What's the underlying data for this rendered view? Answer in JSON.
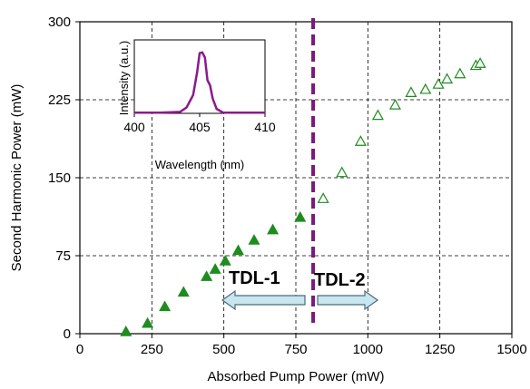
{
  "colors": {
    "marker": "#1e8c1e",
    "divider": "#7a1a7a",
    "arrow_fill": "#c8e6ee",
    "arrow_stroke": "#4a6a80",
    "inset_line": "#8b1a8b",
    "grid": "#000000"
  },
  "chart_data": [
    {
      "type": "scatter",
      "title": "",
      "xlabel": "Absorbed Pump Power (mW)",
      "ylabel": "Second Harmonic Power (mW)",
      "xlim": [
        0,
        1500
      ],
      "ylim": [
        0,
        300
      ],
      "xticks": [
        "0",
        "250",
        "500",
        "750",
        "1000",
        "1250",
        "1500"
      ],
      "yticks": [
        "0",
        "75",
        "150",
        "225",
        "300"
      ],
      "grid": "dashed at x=250,500,750,1000,1250 and y=75,150,225",
      "divider_x": 810,
      "regions": [
        {
          "label": "TDL-1",
          "arrow_direction": "left"
        },
        {
          "label": "TDL-2",
          "arrow_direction": "right"
        }
      ],
      "series": [
        {
          "marker": "filled-triangle",
          "points": [
            [
              160,
              2
            ],
            [
              235,
              10
            ],
            [
              295,
              26
            ],
            [
              360,
              40
            ],
            [
              440,
              55
            ],
            [
              470,
              62
            ],
            [
              505,
              70
            ],
            [
              550,
              80
            ],
            [
              605,
              90
            ],
            [
              670,
              100
            ],
            [
              765,
              112
            ]
          ]
        },
        {
          "marker": "open-triangle",
          "points": [
            [
              845,
              130
            ],
            [
              910,
              155
            ],
            [
              975,
              185
            ],
            [
              1035,
              210
            ],
            [
              1095,
              220
            ],
            [
              1150,
              232
            ],
            [
              1200,
              235
            ],
            [
              1245,
              240
            ],
            [
              1275,
              245
            ],
            [
              1320,
              250
            ],
            [
              1375,
              258
            ],
            [
              1390,
              260
            ]
          ]
        }
      ]
    },
    {
      "type": "line",
      "inset": true,
      "title": "",
      "xlabel": "Wavelength (nm)",
      "ylabel": "Intensity (a.u.)",
      "xlim": [
        400,
        410
      ],
      "ylim": [
        0,
        1
      ],
      "xticks": [
        "400",
        "405",
        "410"
      ],
      "series": [
        {
          "x": [
            400,
            402,
            403.5,
            404.0,
            404.5,
            404.8,
            405.0,
            405.2,
            405.4,
            405.6,
            405.8,
            406.0,
            406.3,
            406.8,
            410
          ],
          "y": [
            0.01,
            0.01,
            0.02,
            0.08,
            0.25,
            0.55,
            0.82,
            0.83,
            0.76,
            0.45,
            0.38,
            0.2,
            0.06,
            0.01,
            0.01
          ]
        }
      ]
    }
  ]
}
